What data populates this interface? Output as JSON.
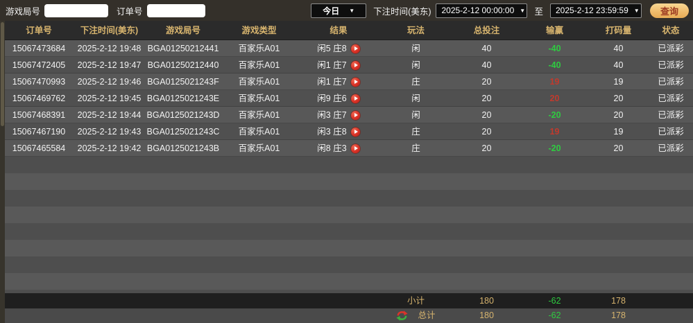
{
  "topbar": {
    "game_round_label": "游戏局号",
    "game_round_value": "",
    "order_no_label": "订单号",
    "order_no_value": "",
    "period_selected": "今日",
    "bet_time_label": "下注时间(美东)",
    "start_time": "2025-2-12 00:00:00",
    "to_label": "至",
    "end_time": "2025-2-12 23:59:59",
    "query_button_label": "查询"
  },
  "icons": {
    "caret_down": "▼",
    "play_icon": "play-circle",
    "refresh_icon": "red-green-refresh-arrows"
  },
  "table": {
    "columns": [
      "订单号",
      "下注时间(美东)",
      "游戏局号",
      "游戏类型",
      "结果",
      "玩法",
      "总投注",
      "输赢",
      "打码量",
      "状态"
    ],
    "rows": [
      {
        "order_no": "15067473684",
        "bet_time": "2025-2-12 19:48",
        "round": "BGA01250212441",
        "game_type": "百家乐A01",
        "result": "闲5 庄8",
        "play": "闲",
        "total_bet": "40",
        "win": "-40",
        "turnover": "40",
        "status": "已派彩"
      },
      {
        "order_no": "15067472405",
        "bet_time": "2025-2-12 19:47",
        "round": "BGA01250212440",
        "game_type": "百家乐A01",
        "result": "闲1 庄7",
        "play": "闲",
        "total_bet": "40",
        "win": "-40",
        "turnover": "40",
        "status": "已派彩"
      },
      {
        "order_no": "15067470993",
        "bet_time": "2025-2-12 19:46",
        "round": "BGA0125021243F",
        "game_type": "百家乐A01",
        "result": "闲1 庄7",
        "play": "庄",
        "total_bet": "20",
        "win": "19",
        "turnover": "19",
        "status": "已派彩"
      },
      {
        "order_no": "15067469762",
        "bet_time": "2025-2-12 19:45",
        "round": "BGA0125021243E",
        "game_type": "百家乐A01",
        "result": "闲9 庄6",
        "play": "闲",
        "total_bet": "20",
        "win": "20",
        "turnover": "20",
        "status": "已派彩"
      },
      {
        "order_no": "15067468391",
        "bet_time": "2025-2-12 19:44",
        "round": "BGA0125021243D",
        "game_type": "百家乐A01",
        "result": "闲3 庄7",
        "play": "闲",
        "total_bet": "20",
        "win": "-20",
        "turnover": "20",
        "status": "已派彩"
      },
      {
        "order_no": "15067467190",
        "bet_time": "2025-2-12 19:43",
        "round": "BGA0125021243C",
        "game_type": "百家乐A01",
        "result": "闲3 庄8",
        "play": "庄",
        "total_bet": "20",
        "win": "19",
        "turnover": "19",
        "status": "已派彩"
      },
      {
        "order_no": "15067465584",
        "bet_time": "2025-2-12 19:42",
        "round": "BGA0125021243B",
        "game_type": "百家乐A01",
        "result": "闲8 庄3",
        "play": "庄",
        "total_bet": "20",
        "win": "-20",
        "turnover": "20",
        "status": "已派彩"
      }
    ],
    "subtotal": {
      "label": "小计",
      "total_bet": "180",
      "win": "-62",
      "turnover": "178"
    },
    "grand_total": {
      "label": "总计",
      "total_bet": "180",
      "win": "-62",
      "turnover": "178"
    }
  },
  "colors": {
    "accent_gold": "#d7b46e",
    "win_red": "#c13a2d",
    "loss_green": "#2ecc40",
    "play_icon_red": "#d93025",
    "query_button_gold": "#f1bd6d",
    "query_button_text": "#9c3b22",
    "topbar_bg": "#34302a",
    "header_bg": "#2b2b2b",
    "row_light": "#585858",
    "row_dark": "#505050",
    "subtotal_bg": "#1f1f1f",
    "grandtotal_bg": "#4a4a4a"
  }
}
